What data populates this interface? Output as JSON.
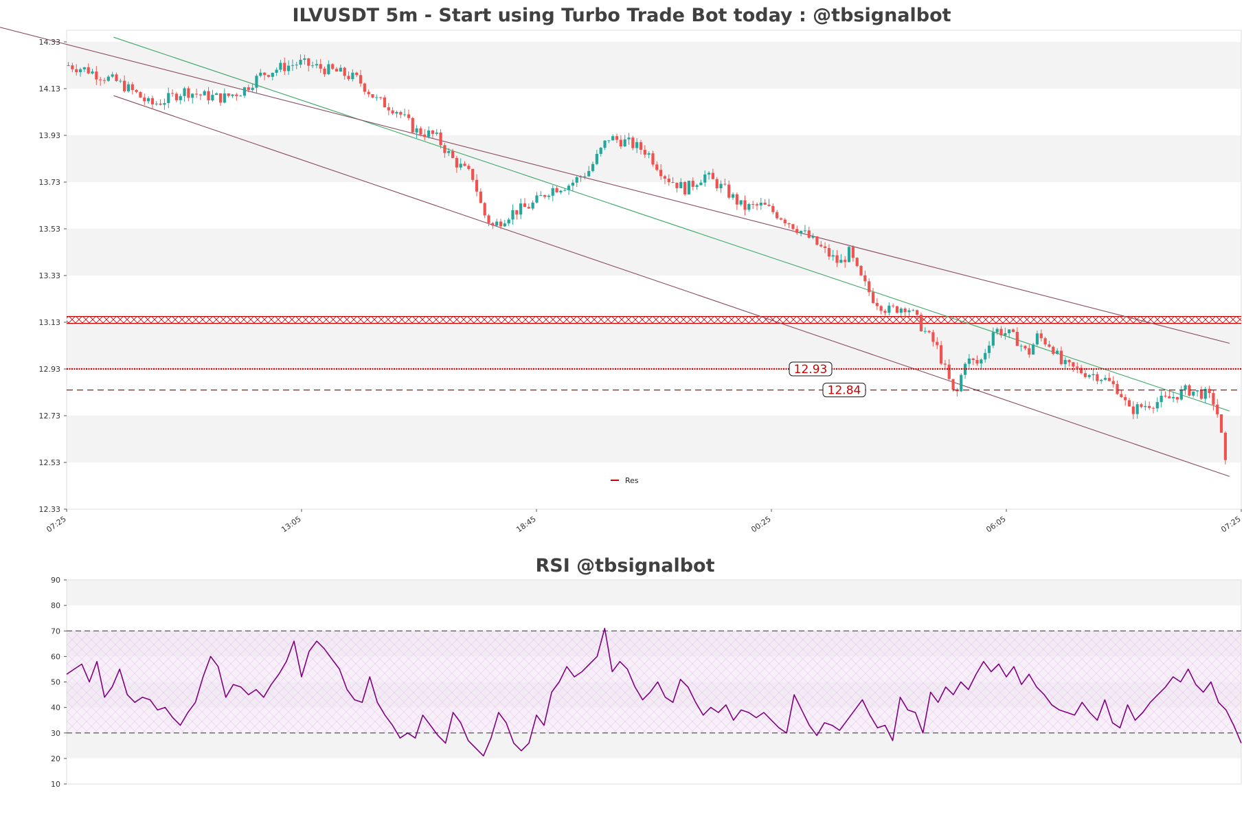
{
  "chart_data": [
    {
      "type": "candlestick",
      "title": "ILVUSDT 5m - Start using Turbo Trade Bot today : @tbsignalbot",
      "y_ticks": [
        "14.33",
        "14.13",
        "13.93",
        "13.73",
        "13.53",
        "13.33",
        "13.13",
        "12.93",
        "12.73",
        "12.53",
        "12.33"
      ],
      "ylim": [
        12.33,
        14.38
      ],
      "x_ticks": [
        "07:25",
        "13:05",
        "18:45",
        "00:25",
        "06:05",
        "07:25"
      ],
      "grid": "horizontal alternating bands",
      "legend": {
        "label": "Res",
        "placement": "lower-center"
      },
      "levels": [
        {
          "value": 12.93,
          "label": "12.93",
          "style": "dotted",
          "color": "#cc0000"
        },
        {
          "value": 12.84,
          "label": "12.84",
          "style": "dashed",
          "color": "#cc0000"
        },
        {
          "value": 13.14,
          "label": "",
          "style": "hatched",
          "color": "#cc0000"
        }
      ],
      "trend_channel": [
        {
          "name": "",
          "from": [
            0.04,
            14.35
          ],
          "to": [
            0.99,
            12.75
          ],
          "color": "#3aa864"
        },
        {
          "name": "",
          "from": [
            -0.07,
            14.41
          ],
          "to": [
            0.99,
            13.04
          ],
          "color": "#8b4a5f"
        },
        {
          "name": "",
          "from": [
            0.04,
            14.1
          ],
          "to": [
            0.99,
            12.47
          ],
          "color": "#8b4a5f"
        }
      ],
      "up_color": "#26a69a",
      "down_color": "#ef5350",
      "close_path": [
        [
          0,
          14.23
        ],
        [
          0.02,
          14.21
        ],
        [
          0.03,
          14.19
        ],
        [
          0.05,
          14.16
        ],
        [
          0.07,
          14.11
        ],
        [
          0.085,
          14.06
        ],
        [
          0.1,
          14.08
        ],
        [
          0.12,
          14.12
        ],
        [
          0.14,
          14.1
        ],
        [
          0.16,
          14.09
        ],
        [
          0.18,
          14.12
        ],
        [
          0.2,
          14.19
        ],
        [
          0.22,
          14.22
        ],
        [
          0.24,
          14.24
        ],
        [
          0.26,
          14.22
        ],
        [
          0.28,
          14.2
        ],
        [
          0.3,
          14.17
        ],
        [
          0.32,
          14.08
        ],
        [
          0.34,
          14.04
        ],
        [
          0.36,
          13.95
        ],
        [
          0.38,
          13.93
        ],
        [
          0.4,
          13.82
        ],
        [
          0.42,
          13.75
        ],
        [
          0.43,
          13.6
        ],
        [
          0.44,
          13.54
        ],
        [
          0.46,
          13.6
        ],
        [
          0.48,
          13.63
        ],
        [
          0.5,
          13.7
        ],
        [
          0.52,
          13.72
        ],
        [
          0.54,
          13.78
        ],
        [
          0.56,
          13.92
        ],
        [
          0.58,
          13.9
        ],
        [
          0.6,
          13.86
        ],
        [
          0.62,
          13.75
        ],
        [
          0.64,
          13.7
        ],
        [
          0.66,
          13.76
        ],
        [
          0.68,
          13.7
        ],
        [
          0.7,
          13.62
        ],
        [
          0.72,
          13.63
        ],
        [
          0.74,
          13.58
        ],
        [
          0.76,
          13.52
        ],
        [
          0.78,
          13.45
        ],
        [
          0.8,
          13.38
        ],
        [
          0.81,
          13.43
        ],
        [
          0.82,
          13.33
        ],
        [
          0.835,
          13.23
        ],
        [
          0.85,
          13.18
        ],
        [
          0.87,
          13.2
        ],
        [
          0.89,
          13.08
        ],
        [
          0.9,
          13.03
        ],
        [
          0.91,
          12.92
        ],
        [
          0.92,
          12.8
        ],
        [
          0.93,
          12.97
        ],
        [
          0.945,
          12.95
        ],
        [
          0.96,
          13.1
        ],
        [
          0.975,
          13.08
        ],
        [
          0.985,
          13.05
        ],
        [
          0.995,
          12.99
        ],
        [
          1.005,
          13.07
        ],
        [
          1.02,
          13.03
        ]
      ],
      "close_path_tail": [
        [
          1.03,
          12.95
        ],
        [
          1.05,
          12.92
        ],
        [
          1.07,
          12.9
        ],
        [
          1.09,
          12.84
        ],
        [
          1.1,
          12.75
        ],
        [
          1.12,
          12.78
        ],
        [
          1.14,
          12.8
        ],
        [
          1.16,
          12.84
        ],
        [
          1.18,
          12.82
        ],
        [
          1.19,
          12.78
        ],
        [
          1.2,
          12.54
        ]
      ],
      "last_close": 12.54
    },
    {
      "type": "line",
      "title": "RSI @tbsignalbot",
      "y_ticks": [
        "90",
        "80",
        "70",
        "60",
        "50",
        "40",
        "30",
        "20",
        "10"
      ],
      "ylim": [
        10,
        90
      ],
      "overbought": 70,
      "oversold": 30,
      "series": [
        {
          "name": "",
          "color": "#800080",
          "values": [
            53,
            55,
            57,
            50,
            58,
            44,
            48,
            55,
            45,
            42,
            44,
            43,
            39,
            40,
            36,
            33,
            38,
            42,
            52,
            60,
            56,
            44,
            49,
            48,
            45,
            47,
            44,
            49,
            53,
            58,
            66,
            52,
            62,
            66,
            63,
            59,
            55,
            47,
            43,
            42,
            52,
            42,
            37,
            33,
            28,
            30,
            28,
            37,
            33,
            29,
            26,
            38,
            34,
            27,
            24,
            21,
            28,
            38,
            34,
            26,
            23,
            26,
            37,
            33,
            46,
            50,
            56,
            52,
            54,
            57,
            60,
            71,
            54,
            58,
            55,
            48,
            43,
            46,
            50,
            44,
            42,
            51,
            48,
            42,
            37,
            40,
            38,
            41,
            35,
            39,
            38,
            36,
            38,
            35,
            32,
            30,
            45,
            39,
            33,
            29,
            34,
            33,
            31,
            35,
            39,
            43,
            37,
            32,
            33,
            27,
            44,
            39,
            38,
            30,
            46,
            42,
            48,
            45,
            50,
            47,
            53,
            58,
            54,
            57,
            52,
            56,
            49,
            53,
            48,
            45,
            41,
            39,
            38,
            37,
            42,
            38,
            35,
            43,
            34,
            32,
            41,
            35,
            38,
            42,
            45,
            48,
            52,
            50,
            55,
            49,
            46,
            50,
            42,
            39,
            33,
            26
          ]
        }
      ]
    }
  ]
}
